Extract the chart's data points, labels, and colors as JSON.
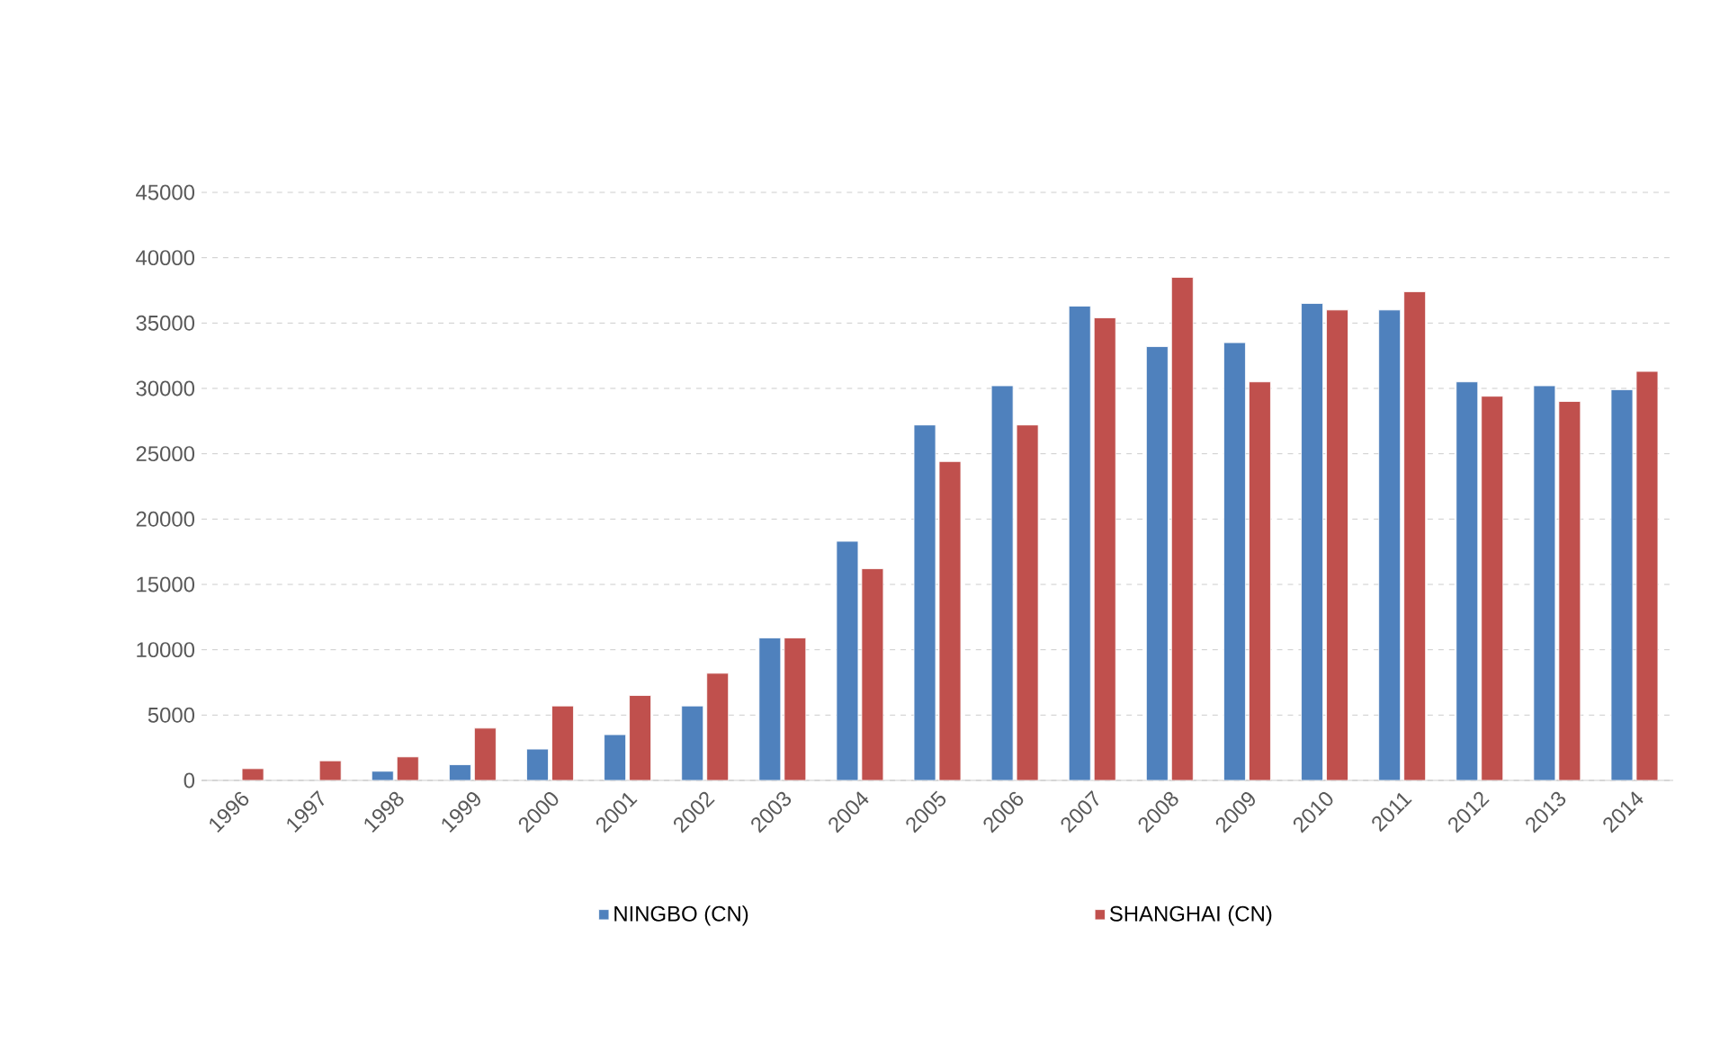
{
  "chart_data": {
    "type": "bar",
    "categories": [
      "1996",
      "1997",
      "1998",
      "1999",
      "2000",
      "2001",
      "2002",
      "2003",
      "2004",
      "2005",
      "2006",
      "2007",
      "2008",
      "2009",
      "2010",
      "2011",
      "2012",
      "2013",
      "2014"
    ],
    "series": [
      {
        "name": "NINGBO (CN)",
        "color": "#4f81bd",
        "values": [
          null,
          null,
          700,
          1200,
          2400,
          3500,
          5700,
          10900,
          18300,
          27200,
          30200,
          36300,
          33200,
          33500,
          36500,
          36000,
          30500,
          30200,
          29900
        ]
      },
      {
        "name": "SHANGHAI (CN)",
        "color": "#c0504d",
        "values": [
          900,
          1500,
          1800,
          4000,
          5700,
          6500,
          8200,
          10900,
          16200,
          24400,
          27200,
          35400,
          38500,
          30500,
          36000,
          37400,
          29400,
          29000,
          31300
        ]
      }
    ],
    "ylim": [
      0,
      45000
    ],
    "yticks": [
      0,
      5000,
      10000,
      15000,
      20000,
      25000,
      30000,
      35000,
      40000,
      45000
    ],
    "grid": "y",
    "legend": "bottom"
  }
}
